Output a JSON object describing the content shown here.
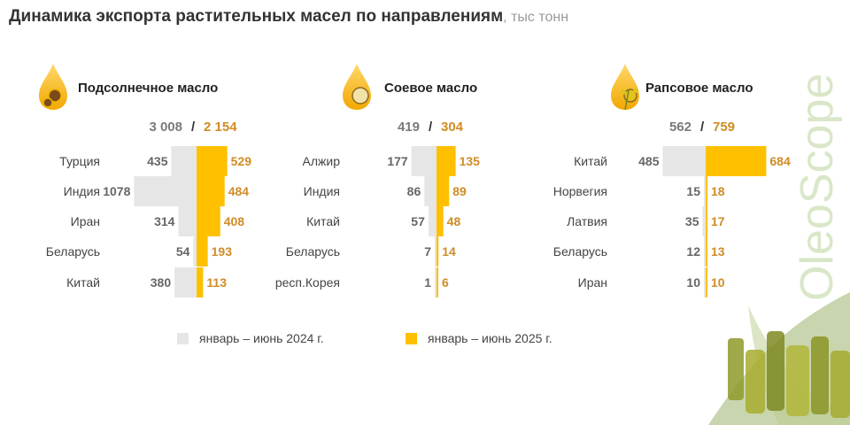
{
  "title": "Динамика экспорта растительных масел по направлениям",
  "unit": ", тыс тонн",
  "brand": "OleoScope",
  "colors": {
    "prev": "#e6e6e6",
    "curr": "#ffc000",
    "curr_text": "#d08c25",
    "prev_text": "#666666"
  },
  "legend": {
    "prev": "январь – июнь 2024 г.",
    "curr": "январь – июнь 2025 г."
  },
  "chart_data": [
    {
      "type": "bar",
      "title": "Подсолнечное масло",
      "icon": "sunflower-oil-icon",
      "totals": {
        "prev": "3 008",
        "sep": "/",
        "curr": "2 154"
      },
      "categories": [
        "Турция",
        "Индия",
        "Иран",
        "Беларусь",
        "Китай"
      ],
      "series": [
        {
          "name": "январь – июнь 2024 г.",
          "values": [
            435,
            1078,
            314,
            54,
            380
          ]
        },
        {
          "name": "январь – июнь 2025 г.",
          "values": [
            529,
            484,
            408,
            193,
            113
          ]
        }
      ]
    },
    {
      "type": "bar",
      "title": "Соевое масло",
      "icon": "soybean-oil-icon",
      "totals": {
        "prev": "419",
        "sep": "/",
        "curr": "304"
      },
      "categories": [
        "Алжир",
        "Индия",
        "Китай",
        "Беларусь",
        "респ.Корея"
      ],
      "series": [
        {
          "name": "январь – июнь 2024 г.",
          "values": [
            177,
            86,
            57,
            7,
            1
          ]
        },
        {
          "name": "январь – июнь 2025 г.",
          "values": [
            135,
            89,
            48,
            14,
            6
          ]
        }
      ]
    },
    {
      "type": "bar",
      "title": "Рапсовое масло",
      "icon": "rapeseed-oil-icon",
      "totals": {
        "prev": "562",
        "sep": "/",
        "curr": "759"
      },
      "categories": [
        "Китай",
        "Норвегия",
        "Латвия",
        "Беларусь",
        "Иран"
      ],
      "series": [
        {
          "name": "январь – июнь 2024 г.",
          "values": [
            485,
            15,
            35,
            12,
            10
          ]
        },
        {
          "name": "январь – июнь 2025 г.",
          "values": [
            684,
            18,
            17,
            13,
            10
          ]
        }
      ]
    }
  ]
}
